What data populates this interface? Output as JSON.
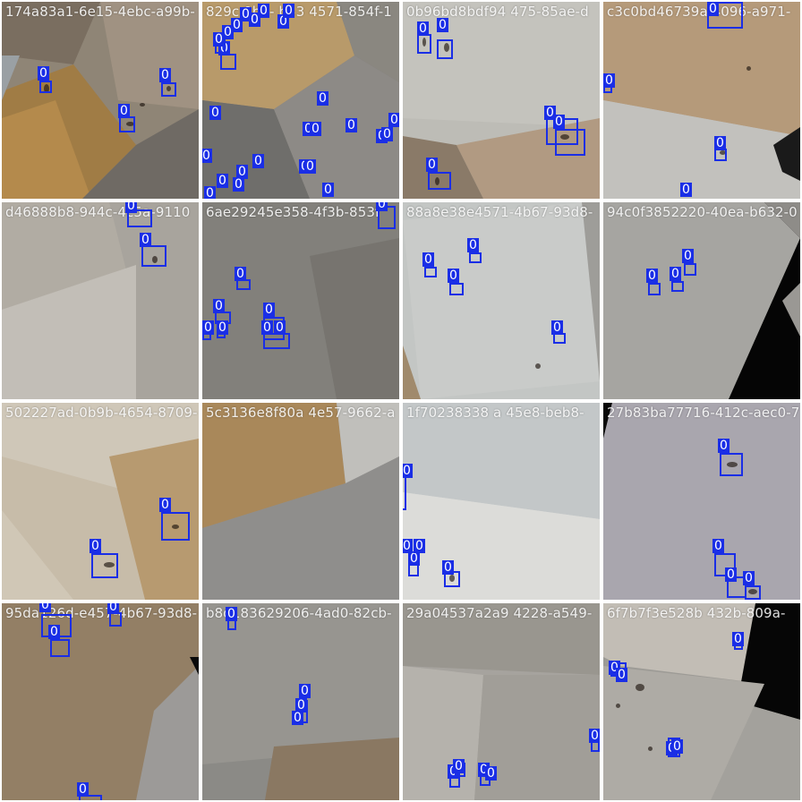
{
  "grid": {
    "tiles": [
      {
        "title": "174a83a1-6e15-4ebc-a99b-",
        "detection_labels": [
          "0",
          "0",
          "0"
        ]
      },
      {
        "title": "829c   0b3-  b53  4571-854f-1",
        "detection_labels": [
          "0",
          "0",
          "0",
          "0",
          "0",
          "0",
          "0",
          "0",
          "0",
          "0",
          "0",
          "0",
          "0",
          "0",
          "0",
          "0",
          "0",
          "0",
          "0",
          "0",
          "0",
          "0",
          "0",
          "0",
          "0",
          "0"
        ]
      },
      {
        "title": "0b96bd8bdf94   475-85ae-d",
        "detection_labels": [
          "0",
          "0",
          "0",
          "0",
          "0"
        ]
      },
      {
        "title": "c3c0bd46739a   4096-a971-",
        "detection_labels": [
          "0",
          "0",
          "0",
          "0"
        ]
      },
      {
        "title": "d46888b8-944c-4c5a-9110",
        "detection_labels": [
          "0",
          "0"
        ]
      },
      {
        "title": "6ae29245e358-4f3b-853f",
        "detection_labels": [
          "0",
          "0",
          "0",
          "0",
          "0",
          "0",
          "0",
          "0"
        ]
      },
      {
        "title": "88a8e38e4571-4b67-93d8-",
        "detection_labels": [
          "0",
          "0",
          "0",
          "0"
        ]
      },
      {
        "title": "94c0f3852220-40ea-b632-0",
        "detection_labels": [
          "0",
          "0",
          "0"
        ]
      },
      {
        "title": "502227ad-0b9b-4654-8709-",
        "detection_labels": [
          "0",
          "0"
        ]
      },
      {
        "title": "5c3136e8f80a   4e57-9662-a",
        "detection_labels": []
      },
      {
        "title": "1f70238338   a   45e8-beb8-",
        "detection_labels": [
          "0",
          "0",
          "0",
          "0",
          "0"
        ]
      },
      {
        "title": "27b83ba77716-412c-aec0-7",
        "detection_labels": [
          "0",
          "0",
          "0",
          "0"
        ]
      },
      {
        "title": "95da126d-e457-4b67-93d8-",
        "detection_labels": [
          "0",
          "0",
          "0",
          "0"
        ]
      },
      {
        "title": "b8d183629206-4ad0-82cb-",
        "detection_labels": [
          "0",
          "0",
          "0",
          "0"
        ]
      },
      {
        "title": "29a04537a2a9   4228-a549-",
        "detection_labels": [
          "0",
          "0",
          "0",
          "0",
          "0"
        ]
      },
      {
        "title": "6f7b7f3e528b   432b-809a-",
        "detection_labels": [
          "0",
          "0",
          "0",
          "0",
          "0"
        ]
      }
    ]
  }
}
